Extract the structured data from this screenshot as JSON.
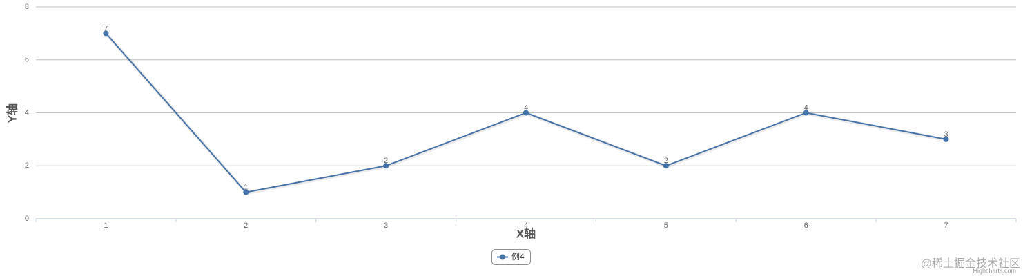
{
  "chart_data": {
    "type": "line",
    "x_axis_title": "X轴",
    "y_axis_title": "Y轴",
    "categories": [
      "1",
      "2",
      "3",
      "4",
      "5",
      "6",
      "7"
    ],
    "series": [
      {
        "name": "例4",
        "color": "#4572a7",
        "values": [
          7,
          1,
          2,
          4,
          2,
          4,
          3
        ]
      }
    ],
    "ylim": [
      0,
      8
    ],
    "yticks": [
      0,
      2,
      4,
      6,
      8
    ],
    "grid": true,
    "legend": "bottom",
    "credits": "Highcharts.com",
    "watermark": "@稀土掘金技术社区"
  }
}
